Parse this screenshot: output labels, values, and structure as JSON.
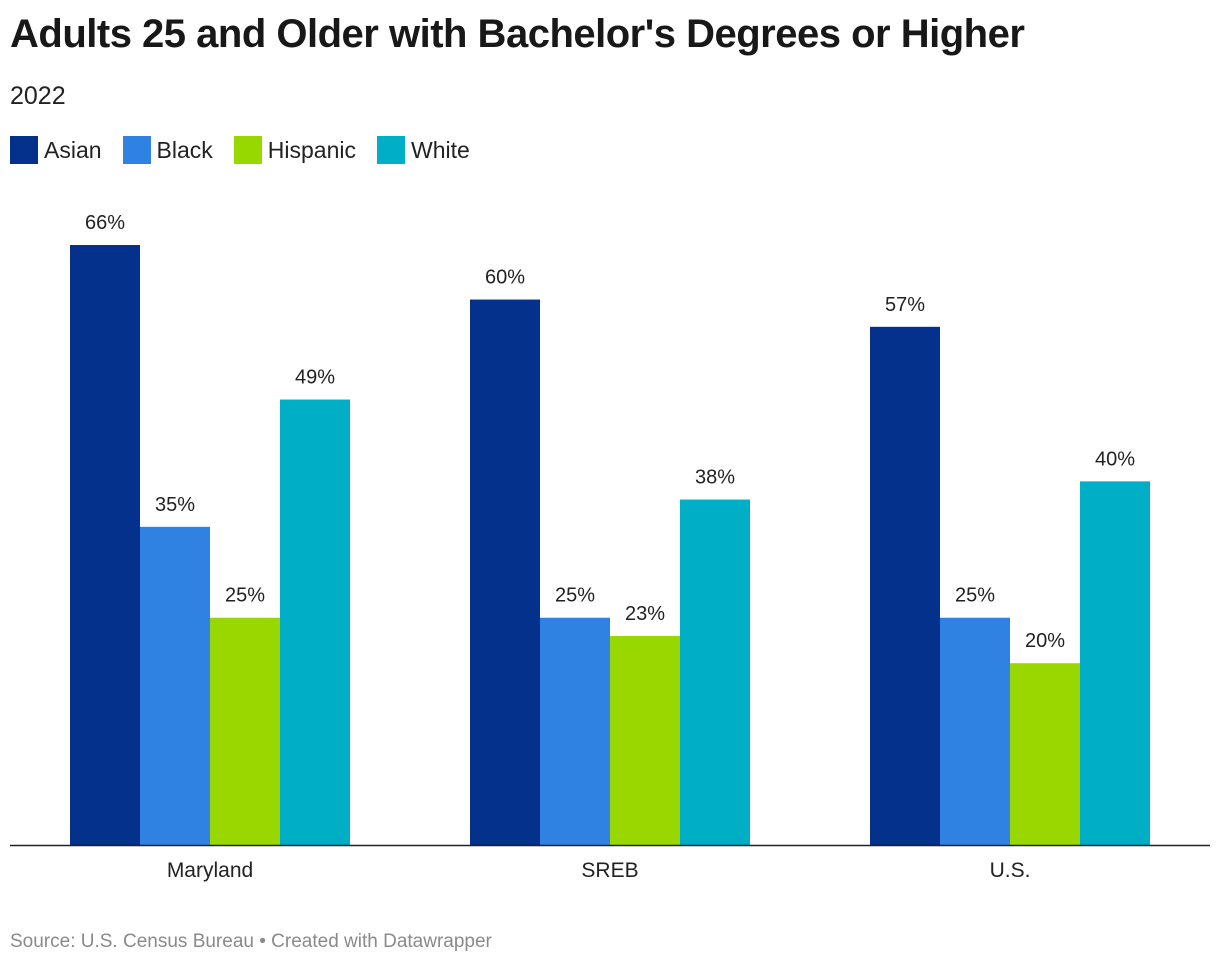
{
  "header": {
    "title": "Adults 25 and Older with Bachelor's Degrees or Higher",
    "subtitle": "2022"
  },
  "footer": {
    "source": "Source: U.S. Census Bureau • Created with Datawrapper"
  },
  "chart_data": {
    "type": "bar",
    "title": "Adults 25 and Older with Bachelor's Degrees or Higher",
    "subtitle": "2022",
    "categories": [
      "Maryland",
      "SREB",
      "U.S."
    ],
    "series": [
      {
        "name": "Asian",
        "color": "#03318c",
        "values": [
          66,
          60,
          57
        ]
      },
      {
        "name": "Black",
        "color": "#2f82e2",
        "values": [
          35,
          25,
          25
        ]
      },
      {
        "name": "Hispanic",
        "color": "#99d700",
        "values": [
          25,
          23,
          20
        ]
      },
      {
        "name": "White",
        "color": "#00afc6",
        "values": [
          49,
          38,
          40
        ]
      }
    ],
    "value_suffix": "%",
    "ylim": [
      0,
      66
    ],
    "grid": false,
    "legend_position": "top-left",
    "xlabel": "",
    "ylabel": ""
  }
}
